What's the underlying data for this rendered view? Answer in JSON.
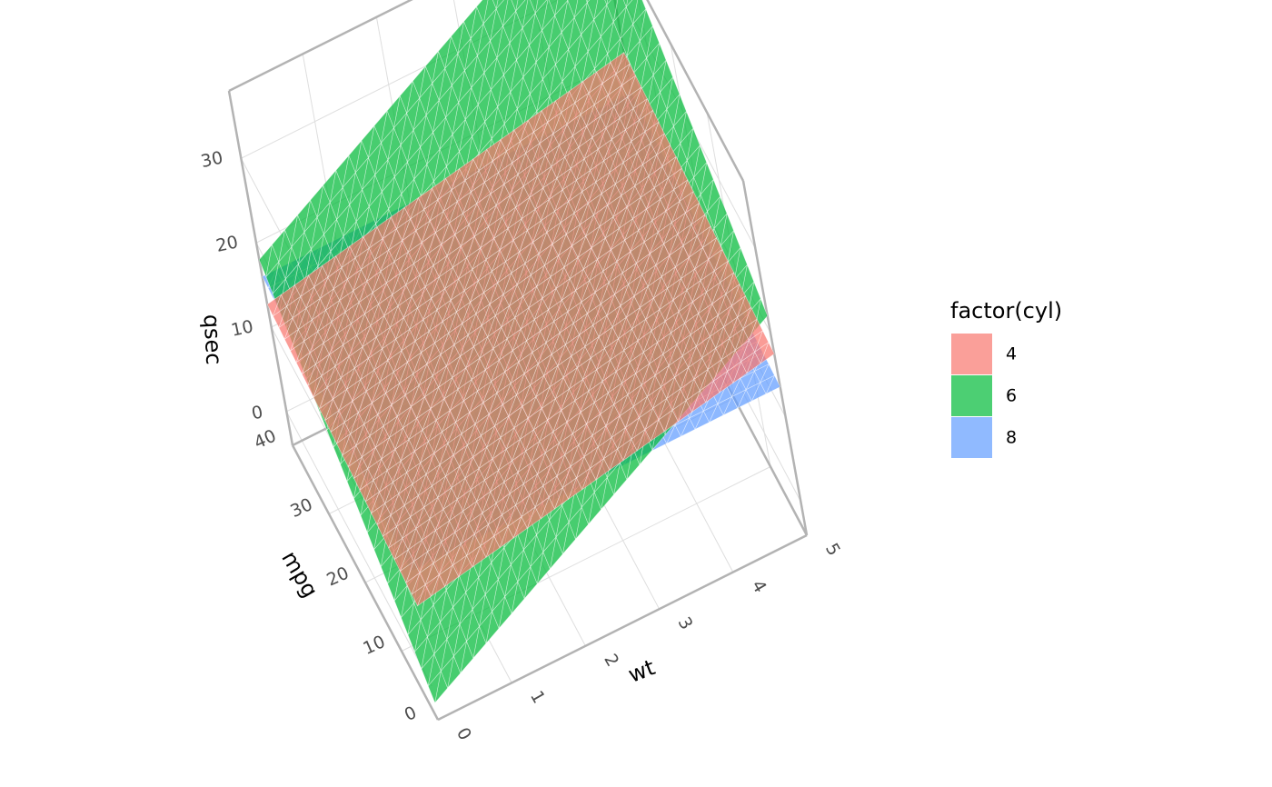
{
  "chart_data": {
    "type": "surface-3d",
    "description": "Three semi-transparent regression planes of qsec over wt and mpg, one per cylinder group",
    "x_axis": {
      "label": "wt",
      "ticks": [
        "0",
        "1",
        "2",
        "3",
        "4",
        "5"
      ],
      "range": [
        0,
        5
      ]
    },
    "y_axis": {
      "label": "mpg",
      "ticks": [
        "0",
        "10",
        "20",
        "30",
        "40"
      ],
      "range": [
        0,
        40
      ]
    },
    "z_axis": {
      "label": "qsec",
      "ticks": [
        "0",
        "10",
        "20",
        "30"
      ],
      "range": [
        -4,
        38
      ]
    },
    "grid": true,
    "legend": {
      "title": "factor(cyl)",
      "position": "right",
      "items": [
        {
          "label": "4",
          "color": "#F8766D"
        },
        {
          "label": "6",
          "color": "#00BA38"
        },
        {
          "label": "8",
          "color": "#619CFF"
        }
      ]
    },
    "series": [
      {
        "name": "4",
        "color": "#F8766D",
        "plane": {
          "intercept": 9.5,
          "wt_coef": 1.6,
          "mpg_coef": 0.08
        }
      },
      {
        "name": "6",
        "color": "#00BA38",
        "plane": {
          "intercept": -2.0,
          "wt_coef": 4.8,
          "mpg_coef": 0.5
        }
      },
      {
        "name": "8",
        "color": "#619CFF",
        "plane": {
          "intercept": 13.6,
          "wt_coef": 0.0,
          "mpg_coef": 0.06
        }
      }
    ]
  }
}
